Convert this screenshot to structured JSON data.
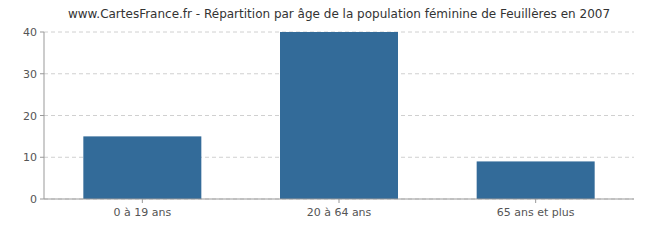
{
  "chart_data": {
    "type": "bar",
    "title": "www.CartesFrance.fr - Répartition par âge de la population féminine de Feuillères en 2007",
    "categories": [
      "0 à 19 ans",
      "20 à 64 ans",
      "65 ans et plus"
    ],
    "values": [
      15,
      40,
      9
    ],
    "color": "#336b99",
    "ylim": [
      0,
      40
    ],
    "yticks": [
      0,
      10,
      20,
      30,
      40
    ],
    "grid": true
  }
}
